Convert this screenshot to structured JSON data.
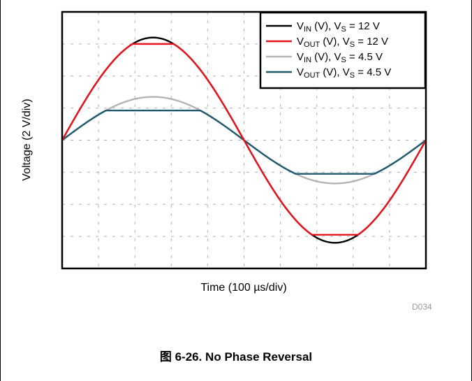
{
  "chart_data": {
    "type": "line",
    "title": "",
    "xlabel": "Time (100 µs/div)",
    "ylabel": "Voltage (2 V/div)",
    "x_divisions": 10,
    "y_divisions": 8,
    "xlim": [
      0,
      10
    ],
    "ylim": [
      -8,
      8
    ],
    "grid": true,
    "legend_position": "top-right",
    "series": [
      {
        "name": "V_IN (V), V_S = 12 V",
        "name_main": "V",
        "name_sub": "IN",
        "name_rest": " (V), V",
        "name_sub2": "S",
        "name_tail": " = 12 V",
        "color": "#000000",
        "amplitude": 6.4,
        "clip": null
      },
      {
        "name": "V_OUT (V), V_S = 12 V",
        "name_main": "V",
        "name_sub": "OUT",
        "name_rest": " (V), V",
        "name_sub2": "S",
        "name_tail": " = 12 V",
        "color": "#e8141e",
        "amplitude": 6.4,
        "clip": [
          -5.9,
          6.0
        ]
      },
      {
        "name": "V_IN (V), V_S = 4.5 V",
        "name_main": "V",
        "name_sub": "IN",
        "name_rest": " (V), V",
        "name_sub2": "S",
        "name_tail": " = 4.5 V",
        "color": "#b4b4b4",
        "amplitude": 2.7,
        "clip": null
      },
      {
        "name": "V_OUT (V), V_S = 4.5 V",
        "name_main": "V",
        "name_sub": "OUT",
        "name_rest": " (V), V",
        "name_sub2": "S",
        "name_tail": " = 4.5 V",
        "color": "#1e5a6e",
        "amplitude": 2.7,
        "clip": [
          -2.1,
          1.85
        ]
      }
    ]
  },
  "figure_id": "D034",
  "caption": "图 6-26. No Phase Reversal"
}
